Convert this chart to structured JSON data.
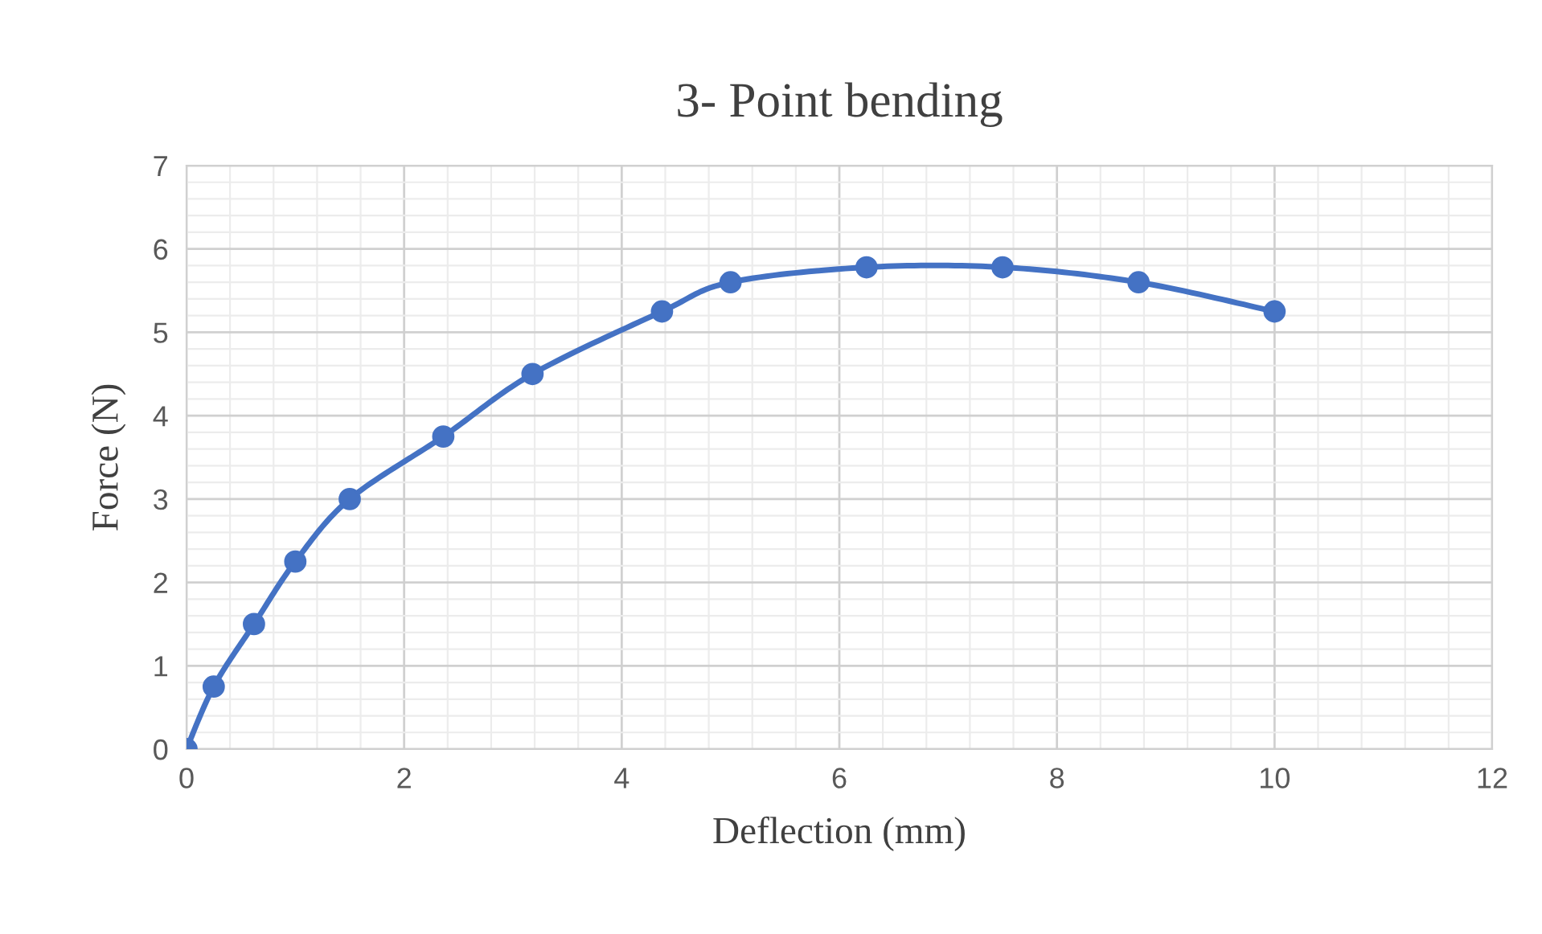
{
  "chart_data": {
    "type": "line",
    "title": "3- Point bending",
    "xlabel": "Deflection (mm)",
    "ylabel": "Force (N)",
    "x": [
      0,
      0.25,
      0.62,
      1,
      1.5,
      2.36,
      3.18,
      4.37,
      5,
      6.25,
      7.5,
      8.75,
      10
    ],
    "series": [
      {
        "color": "#4472c4",
        "values": [
          0,
          0.75,
          1.5,
          2.25,
          3,
          3.75,
          4.5,
          5.25,
          5.6,
          5.78,
          5.78,
          5.6,
          5.25
        ]
      }
    ],
    "xlim": [
      0,
      12
    ],
    "xticks": [
      0,
      2,
      4,
      6,
      8,
      10,
      12
    ],
    "ylim": [
      0,
      7
    ],
    "yticks": [
      0,
      1,
      2,
      3,
      4,
      5,
      6,
      7
    ],
    "grid": true,
    "marker": "circle",
    "line_style": "solid"
  }
}
